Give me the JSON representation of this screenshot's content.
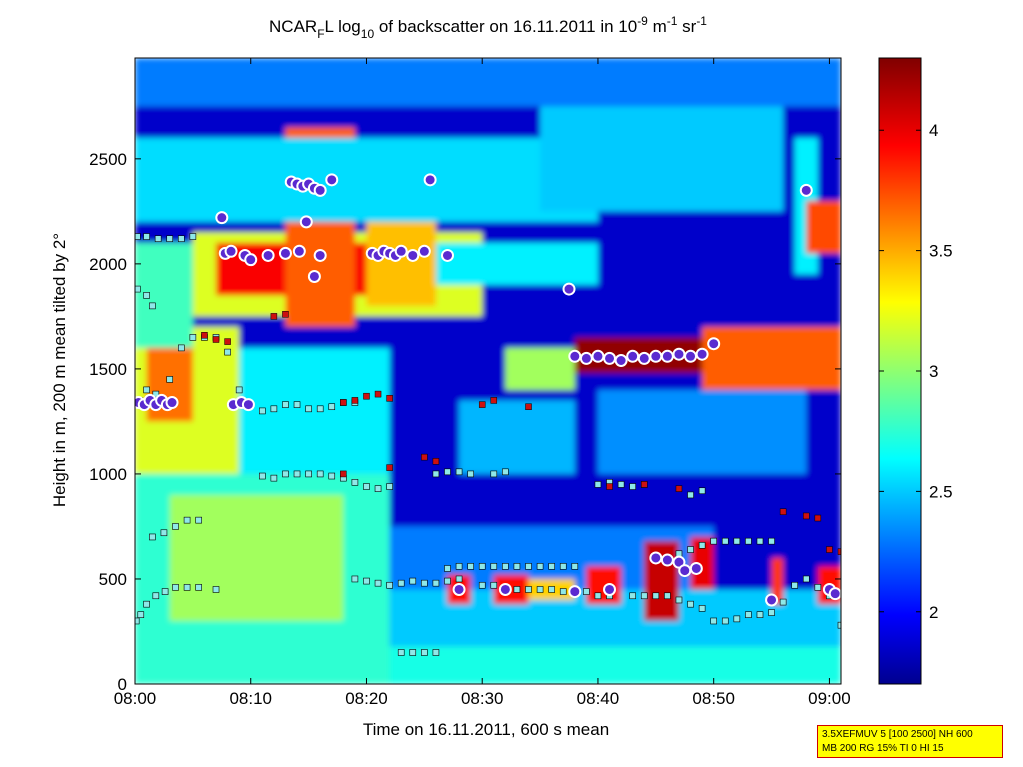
{
  "chart_data": {
    "type": "heatmap",
    "title_parts": {
      "a": "NCAR",
      "b": "F",
      "c": "L log",
      "d": "10",
      "e": " of backscatter on 16.11.2011 in 10",
      "f": "-9",
      "g": " m",
      "h": "-1",
      "i": " sr",
      "j": "-1"
    },
    "xlabel": "Time on 16.11.2011, 600 s mean",
    "ylabel": "Height in m, 200 m mean tilted by 2°",
    "x_ticks": [
      "08:00",
      "08:10",
      "08:20",
      "08:30",
      "08:40",
      "08:50",
      "09:00"
    ],
    "x_tick_minutes": [
      0,
      10,
      20,
      30,
      40,
      50,
      60
    ],
    "xlim_minutes": [
      0,
      61
    ],
    "y_ticks": [
      0,
      500,
      1000,
      1500,
      2000,
      2500
    ],
    "ylim": [
      0,
      2980
    ],
    "colorbar": {
      "range": [
        1.7,
        4.3
      ],
      "ticks": [
        2,
        2.5,
        3,
        3.5,
        4
      ],
      "colormap": "jet"
    },
    "layers": [
      {
        "t0": 0,
        "t1": 61,
        "h0": 0,
        "h1": 2980,
        "v": 1.85
      },
      {
        "t0": 0,
        "t1": 61,
        "h0": 0,
        "h1": 180,
        "v": 2.7
      },
      {
        "t0": 0,
        "t1": 22,
        "h0": 0,
        "h1": 1000,
        "v": 2.75
      },
      {
        "t0": 3,
        "t1": 18,
        "h0": 300,
        "h1": 900,
        "v": 3.05
      },
      {
        "t0": 22,
        "t1": 61,
        "h0": 180,
        "h1": 450,
        "v": 2.5
      },
      {
        "t0": 22,
        "t1": 50,
        "h0": 450,
        "h1": 750,
        "v": 2.3
      },
      {
        "t0": 0,
        "t1": 9,
        "h0": 1000,
        "h1": 1700,
        "v": 3.2
      },
      {
        "t0": 1,
        "t1": 5,
        "h0": 1250,
        "h1": 1650,
        "v": 3.65
      },
      {
        "t0": 9,
        "t1": 22,
        "h0": 1000,
        "h1": 1600,
        "v": 2.6
      },
      {
        "t0": 0,
        "t1": 5,
        "h0": 1600,
        "h1": 2100,
        "v": 2.8
      },
      {
        "t0": 5,
        "t1": 30,
        "h0": 1750,
        "h1": 2150,
        "v": 3.2
      },
      {
        "t0": 7,
        "t1": 26,
        "h0": 1850,
        "h1": 2100,
        "v": 3.95
      },
      {
        "t0": 13,
        "t1": 19,
        "h0": 1700,
        "h1": 2650,
        "v": 3.7
      },
      {
        "t0": 20,
        "t1": 26,
        "h0": 1800,
        "h1": 2500,
        "v": 3.45
      },
      {
        "t0": 26,
        "t1": 40,
        "h0": 1900,
        "h1": 2100,
        "v": 2.6
      },
      {
        "t0": 0,
        "t1": 40,
        "h0": 2200,
        "h1": 2600,
        "v": 2.55
      },
      {
        "t0": 35,
        "t1": 56,
        "h0": 2250,
        "h1": 2750,
        "v": 2.5
      },
      {
        "t0": 0,
        "t1": 61,
        "h0": 2750,
        "h1": 2980,
        "v": 2.3
      },
      {
        "t0": 32,
        "t1": 38,
        "h0": 1400,
        "h1": 1600,
        "v": 3.05
      },
      {
        "t0": 38,
        "t1": 49,
        "h0": 1480,
        "h1": 1650,
        "v": 4.25
      },
      {
        "t0": 49,
        "t1": 61,
        "h0": 1400,
        "h1": 1700,
        "v": 3.7
      },
      {
        "t0": 28,
        "t1": 38,
        "h0": 1000,
        "h1": 1350,
        "v": 2.45
      },
      {
        "t0": 40,
        "t1": 58,
        "h0": 1000,
        "h1": 1400,
        "v": 2.35
      },
      {
        "t0": 27,
        "t1": 29,
        "h0": 380,
        "h1": 520,
        "v": 3.9
      },
      {
        "t0": 31,
        "t1": 34,
        "h0": 380,
        "h1": 520,
        "v": 3.9
      },
      {
        "t0": 34,
        "t1": 38,
        "h0": 400,
        "h1": 500,
        "v": 3.4
      },
      {
        "t0": 39,
        "t1": 42,
        "h0": 380,
        "h1": 560,
        "v": 3.9
      },
      {
        "t0": 44,
        "t1": 47,
        "h0": 300,
        "h1": 680,
        "v": 4.1
      },
      {
        "t0": 48,
        "t1": 50,
        "h0": 450,
        "h1": 700,
        "v": 4.0
      },
      {
        "t0": 55,
        "t1": 56,
        "h0": 380,
        "h1": 600,
        "v": 3.8
      },
      {
        "t0": 59,
        "t1": 61,
        "h0": 380,
        "h1": 560,
        "v": 3.9
      },
      {
        "t0": 57,
        "t1": 59,
        "h0": 1950,
        "h1": 2600,
        "v": 2.6
      },
      {
        "t0": 58,
        "t1": 61,
        "h0": 2050,
        "h1": 2300,
        "v": 3.75
      }
    ],
    "markers": [
      {
        "kind": "square",
        "pts": [
          [
            0.1,
            300
          ],
          [
            0.5,
            330
          ],
          [
            1,
            380
          ],
          [
            1.8,
            420
          ],
          [
            2.6,
            440
          ],
          [
            3.5,
            460
          ],
          [
            4.5,
            460
          ],
          [
            5.5,
            460
          ],
          [
            7,
            450
          ]
        ]
      },
      {
        "kind": "square",
        "pts": [
          [
            0.4,
            1350
          ],
          [
            1.0,
            1400
          ],
          [
            1.8,
            1380
          ],
          [
            3,
            1450
          ],
          [
            4,
            1600
          ],
          [
            5,
            1650
          ],
          [
            6,
            1650
          ],
          [
            7,
            1650
          ],
          [
            8,
            1580
          ],
          [
            9,
            1400
          ],
          [
            10,
            1330
          ],
          [
            11,
            1300
          ],
          [
            12,
            1310
          ],
          [
            13,
            1330
          ],
          [
            14,
            1330
          ],
          [
            15,
            1310
          ],
          [
            16,
            1310
          ],
          [
            17,
            1320
          ],
          [
            18,
            1340
          ],
          [
            19,
            1340
          ]
        ]
      },
      {
        "kind": "square",
        "pts": [
          [
            11,
            990
          ],
          [
            12,
            980
          ],
          [
            13,
            1000
          ],
          [
            14,
            1000
          ],
          [
            15,
            1000
          ],
          [
            16,
            1000
          ],
          [
            17,
            990
          ],
          [
            18,
            980
          ],
          [
            19,
            960
          ],
          [
            20,
            940
          ],
          [
            21,
            930
          ],
          [
            22,
            940
          ]
        ]
      },
      {
        "kind": "square",
        "pts": [
          [
            1.5,
            700
          ],
          [
            2.5,
            720
          ],
          [
            3.5,
            750
          ],
          [
            4.5,
            780
          ],
          [
            5.5,
            780
          ]
        ]
      },
      {
        "kind": "square",
        "pts": [
          [
            19,
            500
          ],
          [
            20,
            490
          ],
          [
            21,
            480
          ],
          [
            22,
            470
          ],
          [
            23,
            480
          ],
          [
            24,
            490
          ],
          [
            25,
            480
          ],
          [
            26,
            480
          ],
          [
            27,
            490
          ],
          [
            28,
            500
          ],
          [
            30,
            470
          ],
          [
            31,
            470
          ],
          [
            32,
            450
          ],
          [
            33,
            450
          ],
          [
            34,
            450
          ],
          [
            35,
            450
          ],
          [
            36,
            450
          ],
          [
            37,
            440
          ],
          [
            38,
            440
          ],
          [
            39,
            440
          ],
          [
            40,
            420
          ],
          [
            41,
            420
          ]
        ]
      },
      {
        "kind": "square",
        "pts": [
          [
            27,
            550
          ],
          [
            28,
            560
          ],
          [
            29,
            560
          ],
          [
            30,
            560
          ],
          [
            31,
            560
          ],
          [
            32,
            560
          ],
          [
            33,
            560
          ],
          [
            34,
            560
          ],
          [
            35,
            560
          ],
          [
            36,
            560
          ],
          [
            37,
            560
          ],
          [
            38,
            560
          ]
        ]
      },
      {
        "kind": "square",
        "pts": [
          [
            23,
            150
          ],
          [
            24,
            150
          ],
          [
            25,
            150
          ],
          [
            26,
            150
          ]
        ]
      },
      {
        "kind": "square",
        "pts": [
          [
            26,
            1000
          ],
          [
            27,
            1010
          ],
          [
            28,
            1010
          ],
          [
            29,
            1000
          ],
          [
            31,
            1000
          ],
          [
            32,
            1010
          ]
        ]
      },
      {
        "kind": "square",
        "pts": [
          [
            43,
            420
          ],
          [
            44,
            420
          ],
          [
            45,
            420
          ],
          [
            46,
            420
          ],
          [
            47,
            400
          ],
          [
            48,
            380
          ],
          [
            49,
            360
          ],
          [
            50,
            300
          ],
          [
            51,
            300
          ],
          [
            52,
            310
          ],
          [
            53,
            330
          ],
          [
            54,
            330
          ],
          [
            55,
            340
          ],
          [
            56,
            390
          ],
          [
            57,
            470
          ],
          [
            58,
            500
          ],
          [
            59,
            460
          ],
          [
            60,
            420
          ],
          [
            61,
            280
          ]
        ]
      },
      {
        "kind": "square",
        "pts": [
          [
            50,
            680
          ],
          [
            51,
            680
          ],
          [
            52,
            680
          ],
          [
            53,
            680
          ],
          [
            54,
            680
          ],
          [
            55,
            680
          ],
          [
            47,
            620
          ],
          [
            48,
            640
          ],
          [
            49,
            660
          ]
        ]
      },
      {
        "kind": "square",
        "pts": [
          [
            0.2,
            2130
          ],
          [
            1,
            2130
          ],
          [
            2,
            2120
          ],
          [
            3,
            2120
          ],
          [
            4,
            2120
          ],
          [
            5,
            2130
          ],
          [
            0.2,
            1880
          ],
          [
            1,
            1850
          ],
          [
            1.5,
            1800
          ]
        ]
      },
      {
        "kind": "square",
        "pts": [
          [
            40,
            950
          ],
          [
            41,
            960
          ],
          [
            42,
            950
          ],
          [
            43,
            940
          ],
          [
            44,
            950
          ],
          [
            48,
            900
          ],
          [
            49,
            920
          ]
        ]
      },
      {
        "kind": "circle",
        "pts": [
          [
            0.3,
            1340
          ],
          [
            0.8,
            1330
          ],
          [
            1.3,
            1350
          ],
          [
            1.8,
            1330
          ],
          [
            2.3,
            1350
          ],
          [
            2.8,
            1330
          ],
          [
            3.2,
            1340
          ]
        ]
      },
      {
        "kind": "circle",
        "pts": [
          [
            8.5,
            1330
          ],
          [
            9.2,
            1340
          ],
          [
            9.8,
            1330
          ]
        ]
      },
      {
        "kind": "circle",
        "pts": [
          [
            7.8,
            2050
          ],
          [
            8.3,
            2060
          ],
          [
            9.5,
            2040
          ],
          [
            10,
            2020
          ],
          [
            11.5,
            2040
          ],
          [
            13,
            2050
          ],
          [
            14.2,
            2060
          ],
          [
            16,
            2040
          ],
          [
            20.5,
            2050
          ],
          [
            21,
            2040
          ],
          [
            21.5,
            2060
          ],
          [
            22,
            2050
          ],
          [
            22.5,
            2040
          ],
          [
            23,
            2060
          ],
          [
            24,
            2040
          ],
          [
            25,
            2060
          ],
          [
            27,
            2040
          ]
        ]
      },
      {
        "kind": "circle",
        "pts": [
          [
            7.5,
            2220
          ],
          [
            13.5,
            2390
          ],
          [
            14,
            2380
          ],
          [
            14.5,
            2370
          ],
          [
            15,
            2380
          ],
          [
            15.5,
            2360
          ],
          [
            16,
            2350
          ],
          [
            17,
            2400
          ],
          [
            25.5,
            2400
          ],
          [
            14.8,
            2200
          ],
          [
            15.5,
            1940
          ]
        ]
      },
      {
        "kind": "circle",
        "pts": [
          [
            37.5,
            1880
          ],
          [
            38,
            1560
          ],
          [
            39,
            1550
          ],
          [
            40,
            1560
          ],
          [
            41,
            1550
          ],
          [
            42,
            1540
          ],
          [
            43,
            1560
          ],
          [
            44,
            1550
          ],
          [
            45,
            1560
          ],
          [
            46,
            1560
          ],
          [
            47,
            1570
          ],
          [
            48,
            1560
          ],
          [
            49,
            1570
          ],
          [
            50,
            1620
          ]
        ]
      },
      {
        "kind": "circle",
        "pts": [
          [
            58,
            2350
          ]
        ]
      },
      {
        "kind": "circle",
        "pts": [
          [
            28,
            450
          ],
          [
            32,
            450
          ],
          [
            38,
            440
          ],
          [
            41,
            450
          ],
          [
            45,
            600
          ],
          [
            46,
            590
          ],
          [
            47,
            580
          ],
          [
            47.5,
            540
          ],
          [
            48.5,
            550
          ],
          [
            55,
            400
          ],
          [
            60,
            450
          ],
          [
            60.5,
            430
          ]
        ]
      },
      {
        "kind": "red",
        "pts": [
          [
            7,
            1640
          ],
          [
            8,
            1630
          ],
          [
            6,
            1660
          ],
          [
            12,
            1750
          ],
          [
            13,
            1760
          ],
          [
            18,
            1340
          ],
          [
            19,
            1350
          ],
          [
            20,
            1370
          ],
          [
            21,
            1380
          ],
          [
            22,
            1360
          ],
          [
            18,
            1000
          ],
          [
            22,
            1030
          ],
          [
            25,
            1080
          ],
          [
            26,
            1060
          ],
          [
            30,
            1330
          ],
          [
            31,
            1350
          ],
          [
            34,
            1320
          ],
          [
            41,
            940
          ],
          [
            44,
            950
          ],
          [
            47,
            930
          ],
          [
            56,
            820
          ],
          [
            58,
            800
          ],
          [
            59,
            790
          ],
          [
            60,
            640
          ],
          [
            61,
            630
          ]
        ]
      }
    ]
  },
  "info_box": {
    "line1": "3.5XEFMUV 5 [100 2500] NH 600",
    "line2": "MB 200 RG 15% TI 0 HI 15"
  },
  "colors": {
    "marker_square_fill": "#8fe8e8",
    "marker_circle_fill": "#5a2ad0",
    "marker_red": "#cc1010",
    "info_bg": "#ffff00",
    "info_border": "#d00000"
  }
}
